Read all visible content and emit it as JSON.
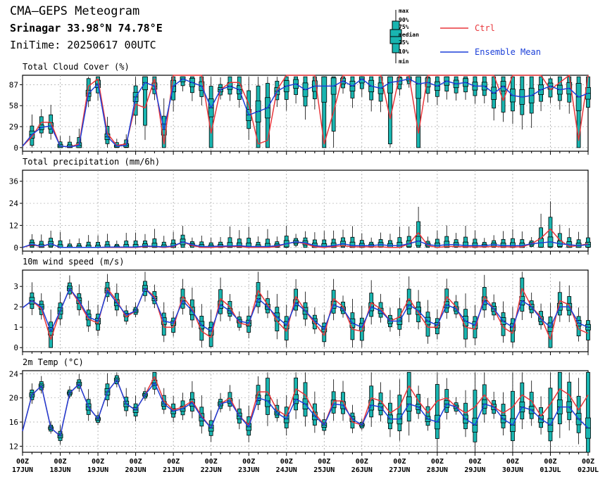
{
  "header": {
    "title": "CMA—GEPS Meteogram",
    "location": "Srinagar 33.98°N 74.78°E",
    "init": "IniTime: 20250617 00UTC"
  },
  "legend": {
    "box_labels": [
      "max",
      "90%",
      "75%",
      "median",
      "25%",
      "10%",
      "min"
    ],
    "ctrl": "Ctrl",
    "mean": "Ensemble Mean",
    "colors": {
      "ctrl": "#e8363b",
      "mean": "#1b3fd8",
      "box": "#19b5b0"
    }
  },
  "chart_data": [
    {
      "type": "line",
      "title": "Total Cloud Cover (%)",
      "ylim": [
        -5,
        100
      ],
      "yticks": [
        0,
        29,
        58,
        87
      ],
      "x_tick_labels": [
        "00Z\n17JUN",
        "00Z\n18JUN",
        "00Z\n19JUN",
        "00Z\n20JUN",
        "00Z\n21JUN",
        "00Z\n22JUN",
        "00Z\n23JUN",
        "00Z\n24JUN",
        "00Z\n25JUN",
        "00Z\n26JUN",
        "00Z\n27JUN",
        "00Z\n28JUN",
        "00Z\n29JUN",
        "00Z\n30JUN",
        "00Z\n01JUL",
        "00Z\n02JUL"
      ],
      "x_hours": [
        0,
        6,
        12,
        18,
        24,
        30,
        36,
        42,
        48,
        54,
        60,
        66,
        72,
        78,
        84,
        90,
        96,
        102,
        108,
        114,
        120,
        126,
        132,
        138,
        144,
        150,
        156,
        162,
        168,
        174,
        180,
        186,
        192,
        198,
        204,
        210,
        216,
        222,
        228,
        234,
        240,
        246,
        252,
        258,
        264,
        270,
        276,
        282,
        288,
        294,
        300,
        306,
        312,
        318,
        324,
        330,
        336,
        342,
        348,
        354,
        360
      ],
      "series": [
        {
          "name": "Ctrl",
          "values": [
            2,
            15,
            35,
            35,
            2,
            1,
            5,
            85,
            95,
            20,
            3,
            5,
            60,
            55,
            95,
            5,
            100,
            100,
            100,
            100,
            20,
            80,
            90,
            90,
            60,
            5,
            10,
            80,
            100,
            100,
            100,
            100,
            5,
            50,
            100,
            100,
            100,
            100,
            100,
            40,
            100,
            100,
            20,
            100,
            100,
            100,
            100,
            100,
            100,
            100,
            100,
            65,
            100,
            100,
            100,
            100,
            80,
            90,
            100,
            10,
            100
          ]
        },
        {
          "name": "Ensemble Mean",
          "values": [
            2,
            18,
            28,
            30,
            2,
            1,
            3,
            75,
            88,
            15,
            2,
            3,
            70,
            90,
            85,
            25,
            85,
            95,
            90,
            85,
            55,
            80,
            85,
            80,
            45,
            50,
            55,
            78,
            85,
            88,
            80,
            85,
            85,
            85,
            92,
            85,
            95,
            85,
            82,
            90,
            92,
            95,
            88,
            90,
            85,
            92,
            88,
            90,
            85,
            85,
            75,
            85,
            72,
            70,
            72,
            80,
            85,
            80,
            82,
            70,
            75
          ]
        }
      ]
    },
    {
      "type": "line",
      "title": "Total precipitation (mm/6h)",
      "ylim": [
        -2,
        42
      ],
      "yticks": [
        0,
        12,
        24,
        36
      ],
      "series": [
        {
          "name": "Ctrl",
          "values": [
            0,
            1.5,
            0.5,
            2,
            0,
            0,
            0,
            0,
            0,
            0,
            0,
            0,
            0,
            0.5,
            0.5,
            0,
            0.5,
            3,
            1,
            0,
            0,
            0.3,
            0.5,
            0.5,
            0,
            0,
            0,
            0.5,
            2,
            3,
            2,
            0.3,
            0,
            0.5,
            1,
            0.3,
            0.3,
            0.3,
            0.3,
            0,
            0,
            2,
            8,
            1,
            0,
            0.5,
            0.5,
            0.3,
            0.3,
            0.3,
            0.5,
            0.3,
            0.3,
            0.3,
            2,
            5,
            10,
            4,
            0.5,
            1,
            2
          ]
        },
        {
          "name": "Ensemble Mean",
          "values": [
            0,
            1.8,
            0.6,
            2,
            0,
            0,
            0,
            0,
            0,
            0.2,
            0.2,
            0.2,
            0.2,
            0.8,
            0.6,
            0.3,
            0.8,
            3,
            1.5,
            0.5,
            0.5,
            0.8,
            0.8,
            1,
            0.5,
            0.5,
            0.5,
            1,
            2,
            3,
            2.5,
            1,
            0.5,
            1,
            2,
            1,
            1,
            1,
            1.5,
            1,
            1,
            2,
            3.5,
            1.5,
            1,
            1.5,
            1.5,
            1,
            1,
            1,
            1.5,
            1,
            1,
            1,
            2,
            2.5,
            3,
            2,
            1.5,
            1,
            1.5
          ]
        }
      ]
    },
    {
      "type": "line",
      "title": "10m wind speed (m/s)",
      "ylim": [
        -0.2,
        3.8
      ],
      "yticks": [
        0,
        1,
        2,
        3
      ],
      "series": [
        {
          "name": "Ctrl",
          "values": [
            1.95,
            2.3,
            1.9,
            0.4,
            1.8,
            2.9,
            2.2,
            1.4,
            1.2,
            2.9,
            2.3,
            1.5,
            1.8,
            2.9,
            2.5,
            1.0,
            1.0,
            2.5,
            1.9,
            0.8,
            0.5,
            2.4,
            2.0,
            1.2,
            1.1,
            2.8,
            2.1,
            1.3,
            0.8,
            2.5,
            1.8,
            1.2,
            0.6,
            2.4,
            2.0,
            0.9,
            0.8,
            2.2,
            1.9,
            1.3,
            1.5,
            2.4,
            1.7,
            1.0,
            1.0,
            2.5,
            2.0,
            1.0,
            0.9,
            2.5,
            1.9,
            1.0,
            0.7,
            2.9,
            2.0,
            1.5,
            0.4,
            2.3,
            2.1,
            0.9,
            0.7
          ]
        },
        {
          "name": "Ensemble Mean",
          "values": [
            1.95,
            2.3,
            2.0,
            0.8,
            1.8,
            2.9,
            2.3,
            1.5,
            1.3,
            2.8,
            2.2,
            1.6,
            1.8,
            2.9,
            2.4,
            1.3,
            1.2,
            2.3,
            1.8,
            1.1,
            0.8,
            2.1,
            1.8,
            1.3,
            1.2,
            2.4,
            2.0,
            1.5,
            1.1,
            2.2,
            1.8,
            1.3,
            0.9,
            2.1,
            1.9,
            1.2,
            1.0,
            2.0,
            1.8,
            1.3,
            1.3,
            2.1,
            1.8,
            1.3,
            1.1,
            2.1,
            1.9,
            1.3,
            1.1,
            2.3,
            1.9,
            1.3,
            1.0,
            2.3,
            2.0,
            1.4,
            1.0,
            2.0,
            2.0,
            1.2,
            1.0
          ]
        }
      ]
    },
    {
      "type": "line",
      "title": "2m Temp (°C)",
      "ylim": [
        11,
        24.5
      ],
      "yticks": [
        12,
        16,
        20,
        24
      ],
      "series": [
        {
          "name": "Ctrl",
          "values": [
            14.5,
            20.5,
            22,
            15,
            13.7,
            20.8,
            22.3,
            18.5,
            16.5,
            21,
            23,
            19,
            18,
            20.5,
            23.5,
            19.5,
            18,
            18.5,
            19.5,
            17,
            15,
            19,
            20,
            17,
            15.5,
            21,
            21,
            18,
            17,
            21.5,
            20.5,
            17.5,
            15.5,
            19.5,
            19.5,
            16,
            15.5,
            20,
            19.5,
            17.5,
            18.5,
            22,
            19.5,
            17.5,
            19.5,
            20,
            18.5,
            17.5,
            18.5,
            20.5,
            18.5,
            17.5,
            18.5,
            20.5,
            19.5,
            17,
            19,
            21.5,
            20.5,
            18,
            20.5
          ]
        },
        {
          "name": "Ensemble Mean",
          "values": [
            14.5,
            20.5,
            22,
            15,
            13.7,
            20.8,
            22.3,
            18.5,
            16.5,
            21,
            23,
            19,
            18,
            20.5,
            22.5,
            19,
            17.8,
            18.2,
            19.2,
            16.8,
            15,
            19,
            19.5,
            17,
            15.2,
            20,
            19.5,
            17.5,
            16.5,
            19.8,
            19,
            17,
            15.5,
            19,
            18.8,
            16.5,
            15.5,
            18.8,
            18.5,
            16.5,
            16.5,
            19,
            18.5,
            16.5,
            16,
            19,
            18.5,
            16.5,
            15.5,
            19,
            18.5,
            16.5,
            15.5,
            18.5,
            18,
            16.5,
            15.5,
            18.5,
            18.5,
            16.5,
            15
          ]
        }
      ]
    }
  ]
}
